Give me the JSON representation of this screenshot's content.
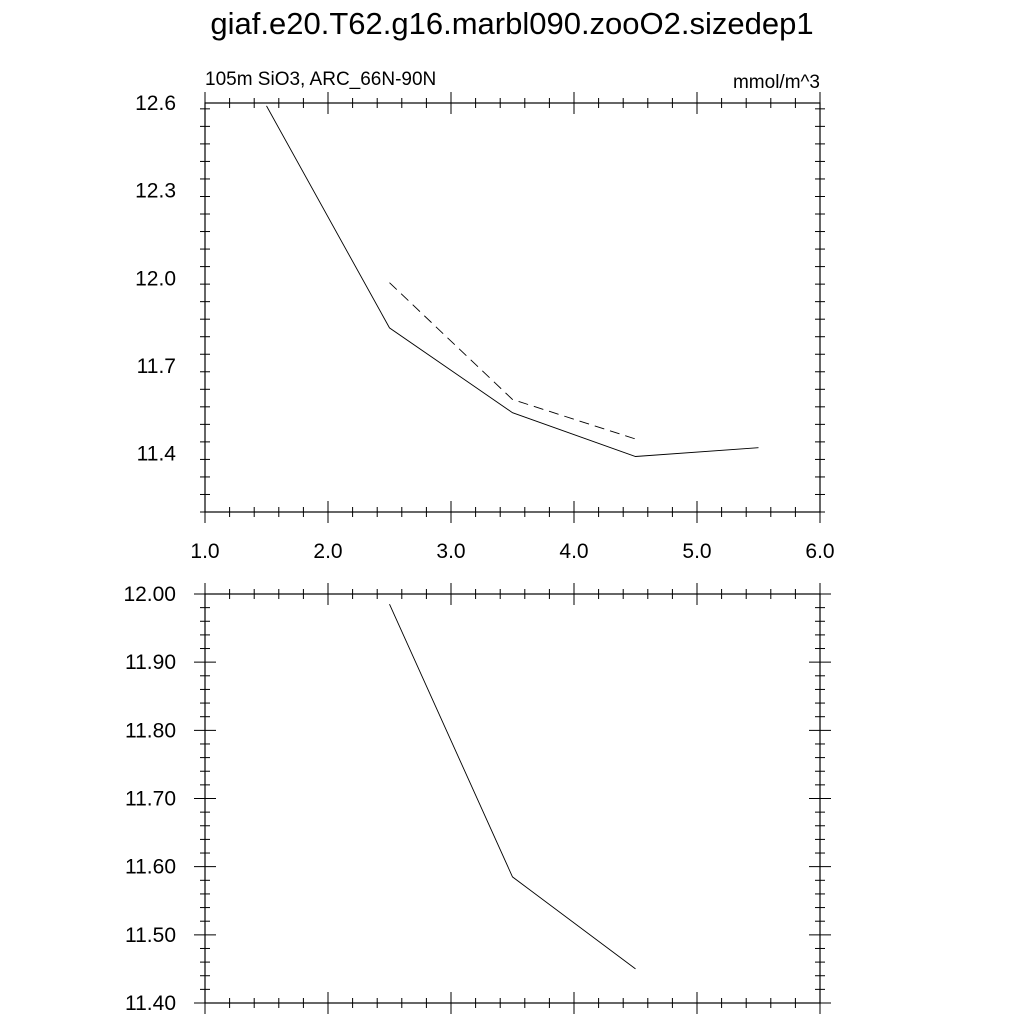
{
  "title": "giaf.e20.T62.g16.marbl090.zooO2.sizedep1",
  "chart_data": [
    {
      "type": "line",
      "subtitle_left": "105m SiO3, ARC_66N-90N",
      "subtitle_right": "mmol/m^3",
      "xlim": [
        1.0,
        6.0
      ],
      "ylim": [
        11.2,
        12.6
      ],
      "x_ticks": [
        1.0,
        2.0,
        3.0,
        4.0,
        5.0,
        6.0
      ],
      "x_tick_labels": [
        "1.0",
        "2.0",
        "3.0",
        "4.0",
        "5.0",
        "6.0"
      ],
      "y_ticks": [
        11.4,
        11.7,
        12.0,
        12.3,
        12.6
      ],
      "y_tick_labels": [
        "11.4",
        "11.7",
        "12.0",
        "12.3",
        "12.6"
      ],
      "grid": false,
      "series": [
        {
          "style": "solid",
          "x": [
            1.5,
            2.5,
            3.5,
            4.5,
            5.5
          ],
          "y": [
            12.59,
            11.83,
            11.54,
            11.39,
            11.42
          ]
        },
        {
          "style": "dashed",
          "x": [
            2.5,
            3.5,
            4.5
          ],
          "y": [
            11.985,
            11.585,
            11.45
          ]
        }
      ]
    },
    {
      "type": "line",
      "xlim": [
        1.0,
        6.0
      ],
      "ylim": [
        11.4,
        12.0
      ],
      "x_ticks": [
        1.0,
        2.0,
        3.0,
        4.0,
        5.0,
        6.0
      ],
      "y_ticks": [
        11.4,
        11.5,
        11.6,
        11.7,
        11.8,
        11.9,
        12.0
      ],
      "y_tick_labels": [
        "11.40",
        "11.50",
        "11.60",
        "11.70",
        "11.80",
        "11.90",
        "12.00"
      ],
      "grid": false,
      "series": [
        {
          "style": "solid",
          "x": [
            2.5,
            3.5,
            4.5
          ],
          "y": [
            11.985,
            11.585,
            11.45
          ]
        }
      ]
    }
  ]
}
